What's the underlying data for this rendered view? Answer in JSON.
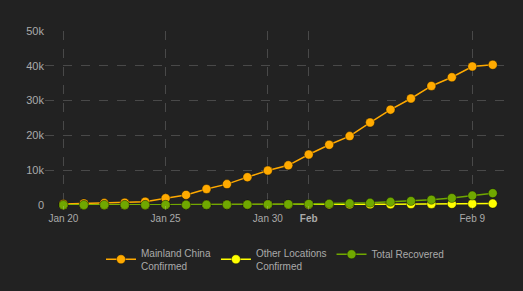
{
  "chart_data": {
    "type": "line",
    "categories": [
      "Jan 20",
      null,
      null,
      null,
      null,
      "Jan 25",
      null,
      null,
      null,
      null,
      "Jan 30",
      null,
      "Feb",
      null,
      null,
      null,
      null,
      null,
      null,
      null,
      "Feb 9",
      null
    ],
    "series": [
      {
        "name": "Mainland China Confirmed",
        "color": "#ffaa00",
        "values": [
          300,
          450,
          550,
          650,
          950,
          1950,
          2900,
          4600,
          6000,
          8000,
          9900,
          11400,
          14500,
          17300,
          19800,
          23700,
          27400,
          30600,
          34200,
          36700,
          39800,
          40300
        ]
      },
      {
        "name": "Other Locations Confirmed",
        "color": "#ffff00",
        "values": [
          2,
          4,
          7,
          10,
          15,
          20,
          35,
          50,
          70,
          90,
          120,
          140,
          150,
          170,
          180,
          210,
          230,
          270,
          300,
          330,
          360,
          400
        ]
      },
      {
        "name": "Total Recovered",
        "color": "#70a800",
        "values": [
          0,
          0,
          25,
          30,
          35,
          40,
          50,
          60,
          100,
          125,
          170,
          240,
          290,
          340,
          480,
          630,
          900,
          1150,
          1500,
          2000,
          2700,
          3400
        ]
      }
    ],
    "ylim": [
      0,
      50000
    ],
    "yticks": [
      0,
      {
        "value": 10000,
        "label": "10k"
      },
      {
        "value": 20000,
        "label": "20k"
      },
      {
        "value": 30000,
        "label": "30k"
      },
      {
        "value": 40000,
        "label": "40k"
      },
      {
        "value": 50000,
        "label": "50k"
      }
    ],
    "grid": true,
    "legend": "bottom",
    "marker": "circle"
  }
}
